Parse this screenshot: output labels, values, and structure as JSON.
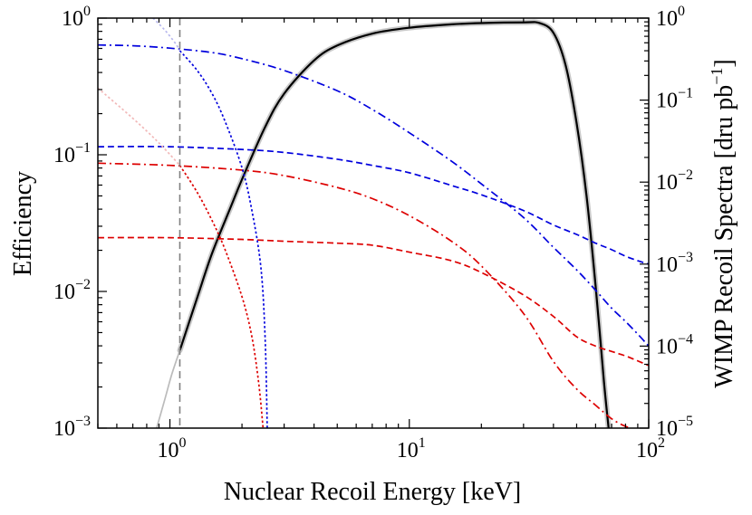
{
  "chart_data": {
    "type": "line",
    "title": "",
    "xlabel": "Nuclear Recoil Energy [keV]",
    "ylabel_left": "Efficiency",
    "ylabel_right": "WIMP Recoil Spectra [dru pb",
    "ylabel_right_sup": "−1",
    "ylabel_right_close": "]",
    "xscale": "log",
    "yscale": "log",
    "xlim": [
      0.5,
      100
    ],
    "ylim_left": [
      0.001,
      1
    ],
    "ylim_right": [
      1e-05,
      1
    ],
    "x_ticks": [
      {
        "base": "10",
        "exp": "0"
      },
      {
        "base": "10",
        "exp": "1"
      },
      {
        "base": "10",
        "exp": "2"
      }
    ],
    "y_ticks_left": [
      {
        "base": "10",
        "exp": "0"
      },
      {
        "base": "10",
        "exp": "−1"
      },
      {
        "base": "10",
        "exp": "−2"
      },
      {
        "base": "10",
        "exp": "−3"
      }
    ],
    "y_ticks_right": [
      {
        "base": "10",
        "exp": "0"
      },
      {
        "base": "10",
        "exp": "−1"
      },
      {
        "base": "10",
        "exp": "−2"
      },
      {
        "base": "10",
        "exp": "−3"
      },
      {
        "base": "10",
        "exp": "−4"
      },
      {
        "base": "10",
        "exp": "−5"
      }
    ],
    "threshold_keV": 1.1,
    "series": [
      {
        "name": "efficiency",
        "axis": "left",
        "color": "#000000",
        "style": "solid",
        "x": [
          1.1,
          1.3,
          1.5,
          1.8,
          2.0,
          2.5,
          3.0,
          4.0,
          5.0,
          7.0,
          10,
          15,
          20,
          30,
          35,
          40,
          45,
          50,
          55,
          60,
          65,
          68
        ],
        "y": [
          0.0037,
          0.009,
          0.019,
          0.042,
          0.066,
          0.16,
          0.28,
          0.49,
          0.63,
          0.77,
          0.85,
          0.9,
          0.92,
          0.93,
          0.92,
          0.78,
          0.45,
          0.17,
          0.05,
          0.011,
          0.0022,
          0.001
        ]
      },
      {
        "name": "blue-dashdot",
        "axis": "right",
        "color": "#0000dd",
        "style": "dashdot",
        "x": [
          0.5,
          0.7,
          1.0,
          1.5,
          2.0,
          3.0,
          5.0,
          7.0,
          10,
          15,
          20,
          30,
          40,
          50,
          60,
          70,
          80,
          90,
          100
        ],
        "y": [
          0.47,
          0.46,
          0.43,
          0.38,
          0.32,
          0.23,
          0.13,
          0.077,
          0.04,
          0.018,
          0.0095,
          0.0037,
          0.0016,
          0.00085,
          0.00048,
          0.00029,
          0.0002,
          0.00014,
          0.0001
        ]
      },
      {
        "name": "blue-dashed",
        "axis": "right",
        "color": "#0000dd",
        "style": "dashed",
        "x": [
          0.5,
          1.0,
          2.0,
          3.0,
          5.0,
          7.0,
          10,
          15,
          20,
          30,
          40,
          50,
          60,
          70,
          80,
          90,
          100
        ],
        "y": [
          0.027,
          0.027,
          0.025,
          0.023,
          0.019,
          0.016,
          0.013,
          0.0091,
          0.007,
          0.0045,
          0.003,
          0.0023,
          0.0018,
          0.0015,
          0.00125,
          0.0011,
          0.001
        ]
      },
      {
        "name": "red-dashdot",
        "axis": "right",
        "color": "#dd0000",
        "style": "dashdot",
        "x": [
          0.5,
          1.0,
          2.0,
          3.0,
          5.0,
          7.0,
          10,
          15,
          20,
          30,
          40,
          50,
          60,
          70,
          80,
          90,
          100
        ],
        "y": [
          0.017,
          0.016,
          0.014,
          0.012,
          0.0086,
          0.0063,
          0.0039,
          0.0019,
          0.00095,
          0.00025,
          6.5e-05,
          3e-05,
          1.9e-05,
          1.3e-05,
          1.05e-05,
          9.5e-06,
          9e-06
        ]
      },
      {
        "name": "red-dashed",
        "axis": "right",
        "color": "#dd0000",
        "style": "dashed",
        "x": [
          0.5,
          1.0,
          2.0,
          3.0,
          5.0,
          7.0,
          10,
          15,
          20,
          30,
          40,
          50,
          60,
          70,
          80,
          90,
          100
        ],
        "y": [
          0.0021,
          0.0021,
          0.002,
          0.0019,
          0.0018,
          0.0017,
          0.0014,
          0.0011,
          0.00079,
          0.00042,
          0.00023,
          0.00013,
          0.0001,
          8.6e-05,
          7.6e-05,
          6.6e-05,
          5.8e-05
        ]
      },
      {
        "name": "blue-dotted",
        "axis": "right",
        "color": "#0000dd",
        "style": "dotted",
        "x": [
          1.1,
          1.3,
          1.5,
          1.7,
          2.0,
          2.2,
          2.4,
          2.5,
          2.55
        ],
        "y": [
          0.4,
          0.23,
          0.12,
          0.055,
          0.015,
          0.0045,
          0.0009,
          0.00012,
          1e-05
        ]
      },
      {
        "name": "red-dotted",
        "axis": "right",
        "color": "#dd0000",
        "style": "dotted",
        "x": [
          1.1,
          1.3,
          1.5,
          1.7,
          2.0,
          2.2,
          2.35,
          2.45
        ],
        "y": [
          0.016,
          0.0075,
          0.0034,
          0.0015,
          0.0004,
          0.00013,
          3.5e-05,
          1e-05
        ]
      },
      {
        "name": "blue-dotted-below-threshold",
        "axis": "right",
        "color": "#b8b8ee",
        "style": "dotted",
        "x": [
          0.85,
          0.95,
          1.05,
          1.1
        ],
        "y": [
          1.0,
          0.72,
          0.5,
          0.4
        ]
      },
      {
        "name": "red-dotted-below-threshold",
        "axis": "right",
        "color": "#f2b8b8",
        "style": "dotted",
        "x": [
          0.5,
          0.7,
          0.9,
          1.1
        ],
        "y": [
          0.14,
          0.06,
          0.03,
          0.016
        ]
      },
      {
        "name": "efficiency-below-threshold",
        "axis": "left",
        "color": "#bbbbbb",
        "style": "solid",
        "x": [
          0.88,
          0.95,
          1.02,
          1.1
        ],
        "y": [
          0.001,
          0.0016,
          0.0025,
          0.0037
        ]
      }
    ]
  }
}
